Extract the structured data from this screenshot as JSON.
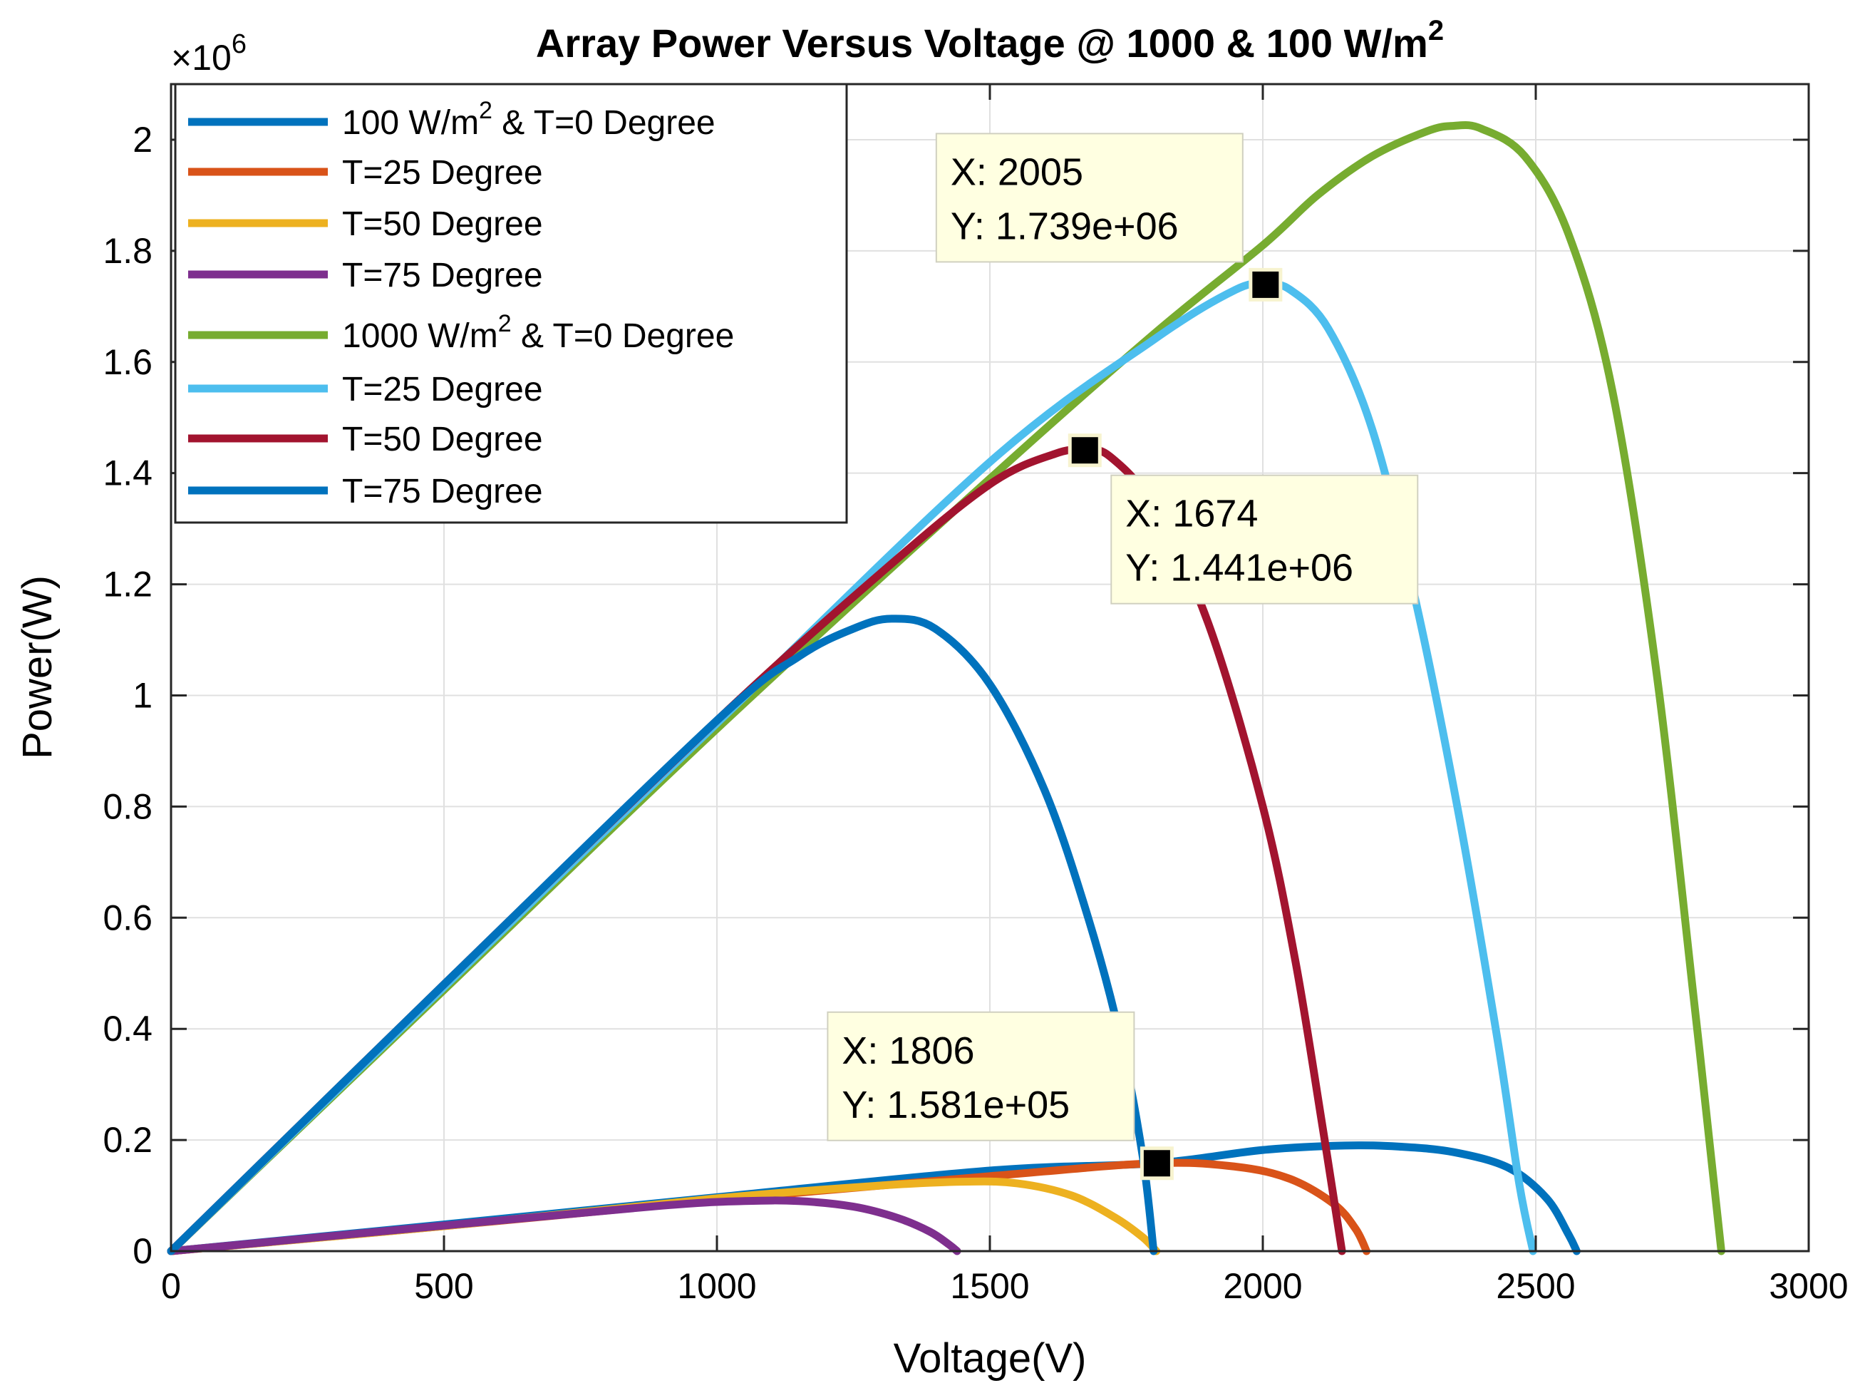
{
  "chart_data": {
    "type": "line",
    "title": "Array Power Versus Voltage @ 1000 & 100 W/m",
    "title_superscript": "2",
    "xlabel": "Voltage(V)",
    "ylabel": "Power(W)",
    "xlim": [
      0,
      3000
    ],
    "ylim": [
      0,
      2.1
    ],
    "y_multiplier": "×10",
    "y_multiplier_exponent": "6",
    "grid": true,
    "legend_placement": "top-left",
    "x_ticks": [
      0,
      500,
      1000,
      1500,
      2000,
      2500,
      3000
    ],
    "x_tick_labels": [
      "0",
      "500",
      "1000",
      "1500",
      "2000",
      "2500",
      "3000"
    ],
    "y_ticks": [
      0,
      0.2,
      0.4,
      0.6,
      0.8,
      1,
      1.2,
      1.4,
      1.6,
      1.8,
      2
    ],
    "y_tick_labels": [
      "0",
      "0.2",
      "0.4",
      "0.6",
      "0.8",
      "1",
      "1.2",
      "1.4",
      "1.6",
      "1.8",
      "2"
    ],
    "series": [
      {
        "legend_label": "100 W/m",
        "legend_superscript": "2",
        "legend_suffix": " & T=0 Degree",
        "color": "#0072BD",
        "points": [
          [
            0,
            0
          ],
          [
            500,
            0.048
          ],
          [
            1000,
            0.097
          ],
          [
            1500,
            0.145
          ],
          [
            1800,
            0.158
          ],
          [
            2000,
            0.182
          ],
          [
            2150,
            0.19
          ],
          [
            2250,
            0.188
          ],
          [
            2350,
            0.178
          ],
          [
            2450,
            0.15
          ],
          [
            2520,
            0.095
          ],
          [
            2560,
            0.03
          ],
          [
            2575,
            0
          ]
        ]
      },
      {
        "legend_label": "T=25 Degree",
        "color": "#D95319",
        "points": [
          [
            0,
            0
          ],
          [
            500,
            0.045
          ],
          [
            1000,
            0.092
          ],
          [
            1500,
            0.135
          ],
          [
            1800,
            0.158
          ],
          [
            1950,
            0.152
          ],
          [
            2050,
            0.13
          ],
          [
            2130,
            0.085
          ],
          [
            2170,
            0.04
          ],
          [
            2190,
            0
          ]
        ]
      },
      {
        "legend_label": "T=50 Degree",
        "color": "#EDB120",
        "points": [
          [
            0,
            0
          ],
          [
            500,
            0.045
          ],
          [
            1000,
            0.095
          ],
          [
            1300,
            0.118
          ],
          [
            1450,
            0.125
          ],
          [
            1550,
            0.122
          ],
          [
            1650,
            0.1
          ],
          [
            1730,
            0.06
          ],
          [
            1780,
            0.025
          ],
          [
            1805,
            0
          ]
        ]
      },
      {
        "legend_label": "T=75 Degree",
        "color": "#7E2F8E",
        "points": [
          [
            0,
            0
          ],
          [
            500,
            0.046
          ],
          [
            900,
            0.082
          ],
          [
            1050,
            0.09
          ],
          [
            1150,
            0.09
          ],
          [
            1250,
            0.08
          ],
          [
            1330,
            0.06
          ],
          [
            1390,
            0.035
          ],
          [
            1425,
            0.012
          ],
          [
            1440,
            0
          ]
        ]
      },
      {
        "legend_label": "1000 W/m",
        "legend_superscript": "2",
        "legend_suffix": " & T=0 Degree",
        "color": "#77AC30",
        "points": [
          [
            0,
            0
          ],
          [
            500,
            0.47
          ],
          [
            1000,
            0.94
          ],
          [
            1500,
            1.39
          ],
          [
            1800,
            1.65
          ],
          [
            2000,
            1.81
          ],
          [
            2100,
            1.9
          ],
          [
            2200,
            1.97
          ],
          [
            2300,
            2.015
          ],
          [
            2350,
            2.025
          ],
          [
            2400,
            2.02
          ],
          [
            2480,
            1.97
          ],
          [
            2560,
            1.83
          ],
          [
            2640,
            1.55
          ],
          [
            2720,
            1.05
          ],
          [
            2790,
            0.45
          ],
          [
            2840,
            0
          ]
        ]
      },
      {
        "legend_label": "T=25 Degree",
        "color": "#4DBEEE",
        "points": [
          [
            0,
            0
          ],
          [
            500,
            0.475
          ],
          [
            1000,
            0.95
          ],
          [
            1500,
            1.42
          ],
          [
            1800,
            1.64
          ],
          [
            1950,
            1.73
          ],
          [
            2005,
            1.739
          ],
          [
            2050,
            1.73
          ],
          [
            2120,
            1.66
          ],
          [
            2200,
            1.48
          ],
          [
            2280,
            1.17
          ],
          [
            2360,
            0.78
          ],
          [
            2430,
            0.38
          ],
          [
            2470,
            0.12
          ],
          [
            2495,
            0
          ]
        ]
      },
      {
        "legend_label": "T=50 Degree",
        "color": "#A2142F",
        "points": [
          [
            0,
            0
          ],
          [
            500,
            0.48
          ],
          [
            1000,
            0.955
          ],
          [
            1300,
            1.22
          ],
          [
            1500,
            1.38
          ],
          [
            1620,
            1.435
          ],
          [
            1674,
            1.441
          ],
          [
            1720,
            1.43
          ],
          [
            1800,
            1.34
          ],
          [
            1900,
            1.13
          ],
          [
            2000,
            0.8
          ],
          [
            2060,
            0.52
          ],
          [
            2110,
            0.22
          ],
          [
            2145,
            0
          ]
        ]
      },
      {
        "legend_label": "T=75 Degree",
        "color": "#0072BD",
        "points": [
          [
            0,
            0
          ],
          [
            500,
            0.48
          ],
          [
            1000,
            0.955
          ],
          [
            1150,
            1.07
          ],
          [
            1250,
            1.12
          ],
          [
            1320,
            1.138
          ],
          [
            1400,
            1.12
          ],
          [
            1500,
            1.02
          ],
          [
            1600,
            0.83
          ],
          [
            1680,
            0.6
          ],
          [
            1740,
            0.38
          ],
          [
            1780,
            0.17
          ],
          [
            1800,
            0
          ]
        ]
      }
    ],
    "data_tips": [
      {
        "x": 2005,
        "y": 1.739,
        "x_text": "X: 2005",
        "y_text": "Y: 1.739e+06",
        "box_anchor": "upper-left"
      },
      {
        "x": 1674,
        "y": 1.441,
        "x_text": "X: 1674",
        "y_text": "Y: 1.441e+06",
        "box_anchor": "lower-right"
      },
      {
        "x": 1806,
        "y": 0.1581,
        "x_text": "X: 1806",
        "y_text": "Y: 1.581e+05",
        "box_anchor": "upper-left"
      }
    ]
  }
}
